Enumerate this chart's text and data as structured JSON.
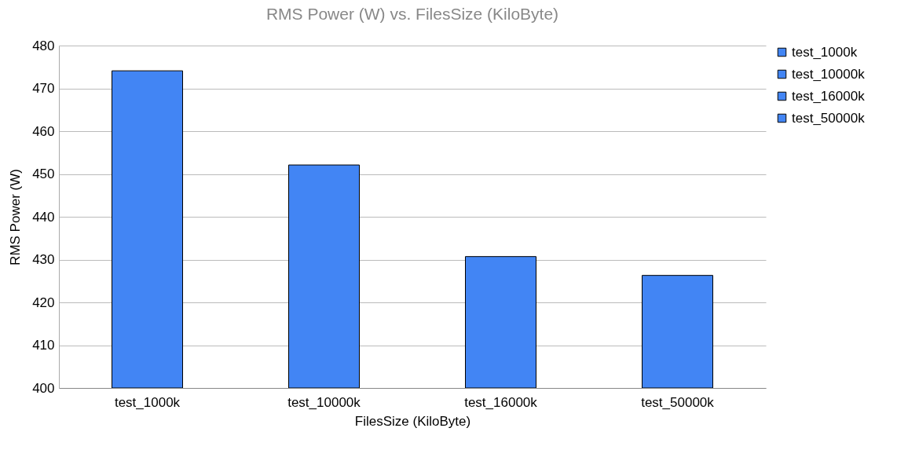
{
  "chart_data": {
    "type": "bar",
    "title": "RMS Power (W) vs. FilesSize (KiloByte)",
    "xlabel": "FilesSize (KiloByte)",
    "ylabel": "RMS Power (W)",
    "categories": [
      "test_1000k",
      "test_10000k",
      "test_16000k",
      "test_50000k"
    ],
    "series": [
      {
        "name": "test_1000k",
        "color": "#4285f4",
        "values": [
          474.1,
          null,
          null,
          null
        ]
      },
      {
        "name": "test_10000k",
        "color": "#4285f4",
        "values": [
          null,
          452.1,
          null,
          null
        ]
      },
      {
        "name": "test_16000k",
        "color": "#4285f4",
        "values": [
          null,
          null,
          430.7,
          null
        ]
      },
      {
        "name": "test_50000k",
        "color": "#4285f4",
        "values": [
          null,
          null,
          null,
          426.3
        ]
      }
    ],
    "ylim": [
      400,
      480
    ],
    "yticks": [
      400,
      410,
      420,
      430,
      440,
      450,
      460,
      470,
      480
    ],
    "grid": "y",
    "legend": "right"
  }
}
